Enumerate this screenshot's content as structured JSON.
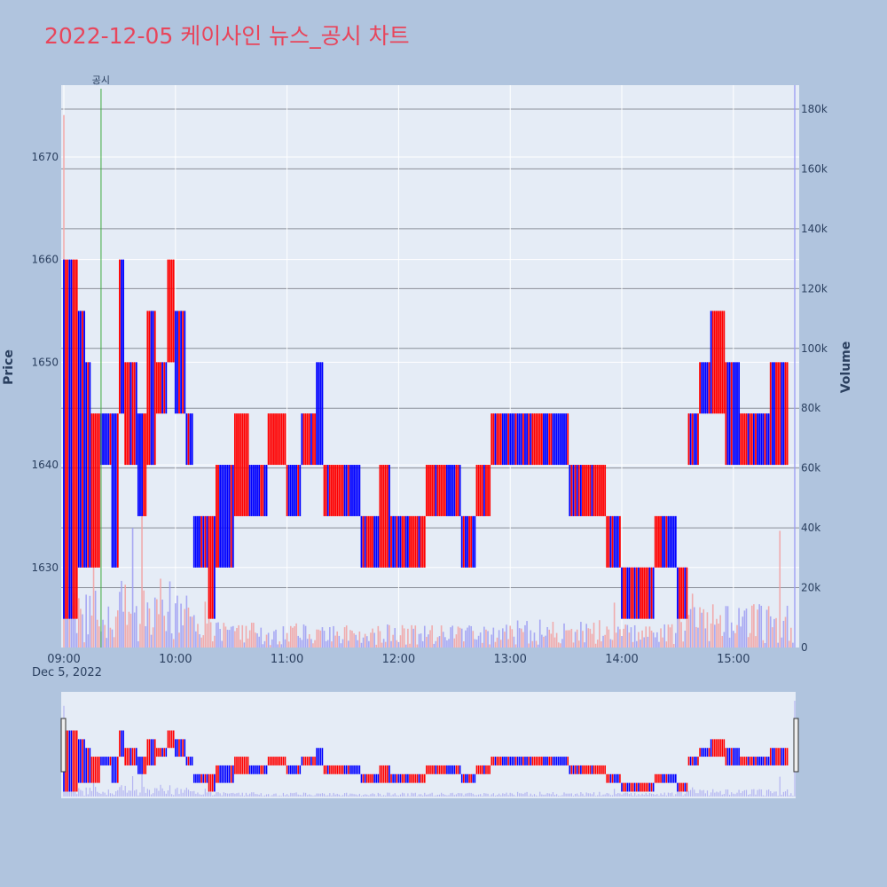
{
  "title": "2022-12-05 케이사인 뉴스_공시 차트",
  "colors": {
    "background": "#b0c4de",
    "plot_bg": "#e5ecf6",
    "title": "#e8455b",
    "up": "#ff0000",
    "down": "#0000ff",
    "marker": "#3caa3c",
    "axis_text": "#2a3f5f"
  },
  "chart_data": {
    "type": "candlestick",
    "title": "2022-12-05 케이사인 뉴스_공시 차트",
    "ylabel": "Price",
    "y2label": "Volume",
    "date_label": "Dec 5, 2022",
    "x_ticks": [
      "09:00",
      "10:00",
      "11:00",
      "12:00",
      "13:00",
      "14:00",
      "15:00"
    ],
    "y_ticks": [
      1630,
      1640,
      1650,
      1660,
      1670
    ],
    "y2_ticks": [
      "0",
      "20k",
      "40k",
      "60k",
      "80k",
      "100k",
      "120k",
      "140k",
      "160k",
      "180k"
    ],
    "ylim": [
      1622.2,
      1677
    ],
    "y2lim": [
      0,
      188000
    ],
    "x_range_min": [
      0,
      393
    ],
    "annotation": {
      "label": "공시",
      "time": "09:20"
    },
    "price_segments": [
      {
        "t0": 0,
        "t1": 8,
        "lo": 1625,
        "hi": 1660,
        "dir": 1
      },
      {
        "t0": 8,
        "t1": 12,
        "lo": 1630,
        "hi": 1655,
        "dir": -1
      },
      {
        "t0": 12,
        "t1": 15,
        "lo": 1630,
        "hi": 1650,
        "dir": -1
      },
      {
        "t0": 15,
        "t1": 20,
        "lo": 1630,
        "hi": 1645,
        "dir": 1
      },
      {
        "t0": 20,
        "t1": 26,
        "lo": 1640,
        "hi": 1645,
        "dir": -1
      },
      {
        "t0": 26,
        "t1": 30,
        "lo": 1630,
        "hi": 1645,
        "dir": 1
      },
      {
        "t0": 30,
        "t1": 33,
        "lo": 1645,
        "hi": 1660,
        "dir": -1
      },
      {
        "t0": 33,
        "t1": 40,
        "lo": 1640,
        "hi": 1650,
        "dir": 1
      },
      {
        "t0": 40,
        "t1": 45,
        "lo": 1635,
        "hi": 1645,
        "dir": -1
      },
      {
        "t0": 45,
        "t1": 50,
        "lo": 1640,
        "hi": 1655,
        "dir": 1
      },
      {
        "t0": 50,
        "t1": 56,
        "lo": 1645,
        "hi": 1650,
        "dir": -1
      },
      {
        "t0": 56,
        "t1": 60,
        "lo": 1650,
        "hi": 1660,
        "dir": 1
      },
      {
        "t0": 60,
        "t1": 66,
        "lo": 1645,
        "hi": 1655,
        "dir": -1
      },
      {
        "t0": 66,
        "t1": 70,
        "lo": 1640,
        "hi": 1645,
        "dir": -1
      },
      {
        "t0": 70,
        "t1": 78,
        "lo": 1630,
        "hi": 1635,
        "dir": -1
      },
      {
        "t0": 78,
        "t1": 82,
        "lo": 1625,
        "hi": 1635,
        "dir": 1
      },
      {
        "t0": 82,
        "t1": 92,
        "lo": 1630,
        "hi": 1640,
        "dir": -1
      },
      {
        "t0": 92,
        "t1": 100,
        "lo": 1635,
        "hi": 1645,
        "dir": 1
      },
      {
        "t0": 100,
        "t1": 110,
        "lo": 1635,
        "hi": 1640,
        "dir": -1
      },
      {
        "t0": 110,
        "t1": 120,
        "lo": 1640,
        "hi": 1645,
        "dir": 1
      },
      {
        "t0": 120,
        "t1": 128,
        "lo": 1635,
        "hi": 1640,
        "dir": -1
      },
      {
        "t0": 128,
        "t1": 136,
        "lo": 1640,
        "hi": 1645,
        "dir": 1
      },
      {
        "t0": 136,
        "t1": 140,
        "lo": 1640,
        "hi": 1650,
        "dir": -1
      },
      {
        "t0": 140,
        "t1": 150,
        "lo": 1635,
        "hi": 1640,
        "dir": 1
      },
      {
        "t0": 150,
        "t1": 160,
        "lo": 1635,
        "hi": 1640,
        "dir": -1
      },
      {
        "t0": 160,
        "t1": 170,
        "lo": 1630,
        "hi": 1635,
        "dir": -1
      },
      {
        "t0": 170,
        "t1": 176,
        "lo": 1630,
        "hi": 1640,
        "dir": 1
      },
      {
        "t0": 176,
        "t1": 186,
        "lo": 1630,
        "hi": 1635,
        "dir": -1
      },
      {
        "t0": 186,
        "t1": 195,
        "lo": 1630,
        "hi": 1635,
        "dir": 1
      },
      {
        "t0": 195,
        "t1": 208,
        "lo": 1635,
        "hi": 1640,
        "dir": 1
      },
      {
        "t0": 208,
        "t1": 214,
        "lo": 1635,
        "hi": 1640,
        "dir": -1
      },
      {
        "t0": 214,
        "t1": 222,
        "lo": 1630,
        "hi": 1635,
        "dir": -1
      },
      {
        "t0": 222,
        "t1": 230,
        "lo": 1635,
        "hi": 1640,
        "dir": 1
      },
      {
        "t0": 230,
        "t1": 240,
        "lo": 1640,
        "hi": 1645,
        "dir": 1
      },
      {
        "t0": 240,
        "t1": 252,
        "lo": 1640,
        "hi": 1645,
        "dir": -1
      },
      {
        "t0": 252,
        "t1": 264,
        "lo": 1640,
        "hi": 1645,
        "dir": 1
      },
      {
        "t0": 264,
        "t1": 272,
        "lo": 1640,
        "hi": 1645,
        "dir": -1
      },
      {
        "t0": 272,
        "t1": 280,
        "lo": 1635,
        "hi": 1640,
        "dir": 1
      },
      {
        "t0": 280,
        "t1": 286,
        "lo": 1635,
        "hi": 1640,
        "dir": -1
      },
      {
        "t0": 286,
        "t1": 292,
        "lo": 1635,
        "hi": 1640,
        "dir": 1
      },
      {
        "t0": 292,
        "t1": 300,
        "lo": 1630,
        "hi": 1635,
        "dir": 1
      },
      {
        "t0": 300,
        "t1": 310,
        "lo": 1625,
        "hi": 1630,
        "dir": -1
      },
      {
        "t0": 310,
        "t1": 318,
        "lo": 1625,
        "hi": 1630,
        "dir": 1
      },
      {
        "t0": 318,
        "t1": 324,
        "lo": 1630,
        "hi": 1635,
        "dir": 1
      },
      {
        "t0": 324,
        "t1": 330,
        "lo": 1630,
        "hi": 1635,
        "dir": -1
      },
      {
        "t0": 330,
        "t1": 336,
        "lo": 1625,
        "hi": 1630,
        "dir": 1
      },
      {
        "t0": 336,
        "t1": 342,
        "lo": 1640,
        "hi": 1645,
        "dir": 1
      },
      {
        "t0": 342,
        "t1": 348,
        "lo": 1645,
        "hi": 1650,
        "dir": -1
      },
      {
        "t0": 348,
        "t1": 356,
        "lo": 1645,
        "hi": 1655,
        "dir": 1
      },
      {
        "t0": 356,
        "t1": 364,
        "lo": 1640,
        "hi": 1650,
        "dir": -1
      },
      {
        "t0": 364,
        "t1": 372,
        "lo": 1640,
        "hi": 1645,
        "dir": 1
      },
      {
        "t0": 372,
        "t1": 380,
        "lo": 1640,
        "hi": 1645,
        "dir": -1
      },
      {
        "t0": 380,
        "t1": 390,
        "lo": 1640,
        "hi": 1650,
        "dir": 1
      }
    ],
    "volume_profile": [
      {
        "t0": 0,
        "t1": 4,
        "v": 24000
      },
      {
        "t0": 4,
        "t1": 20,
        "v": 11000
      },
      {
        "t0": 20,
        "t1": 30,
        "v": 8000
      },
      {
        "t0": 30,
        "t1": 60,
        "v": 13000
      },
      {
        "t0": 60,
        "t1": 80,
        "v": 10000
      },
      {
        "t0": 80,
        "t1": 130,
        "v": 5000
      },
      {
        "t0": 130,
        "t1": 240,
        "v": 4500
      },
      {
        "t0": 240,
        "t1": 290,
        "v": 5500
      },
      {
        "t0": 290,
        "t1": 330,
        "v": 4500
      },
      {
        "t0": 330,
        "t1": 393,
        "v": 8500
      }
    ],
    "volume_spikes": [
      {
        "t": 0,
        "v": 178000
      },
      {
        "t": 1,
        "v": 90000
      },
      {
        "t": 4,
        "v": 55000
      },
      {
        "t": 16,
        "v": 33000
      },
      {
        "t": 37,
        "v": 40000
      },
      {
        "t": 42,
        "v": 45000
      },
      {
        "t": 52,
        "v": 23000
      },
      {
        "t": 78,
        "v": 20000
      },
      {
        "t": 296,
        "v": 15000
      },
      {
        "t": 338,
        "v": 18000
      },
      {
        "t": 370,
        "v": 14000
      },
      {
        "t": 385,
        "v": 39000
      },
      {
        "t": 393,
        "v": 188000
      }
    ]
  }
}
